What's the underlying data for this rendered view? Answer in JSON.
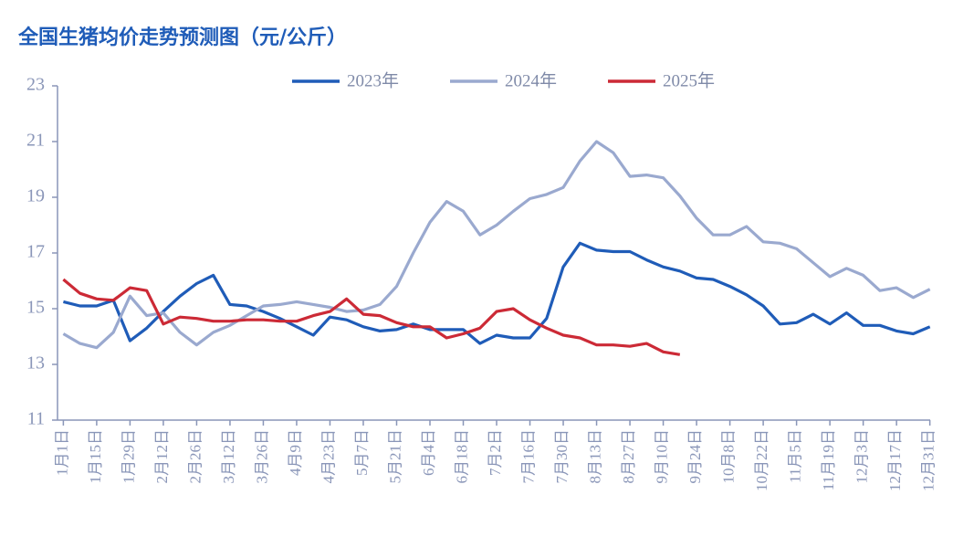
{
  "chart_data": {
    "type": "line",
    "title": "全国生猪均价走势预测图（元/公斤）",
    "categories": [
      "1月1日",
      null,
      "1月15日",
      null,
      "1月29日",
      null,
      "2月12日",
      null,
      "2月26日",
      null,
      "3月12日",
      null,
      "3月26日",
      null,
      "4月9日",
      null,
      "4月23日",
      null,
      "5月7日",
      null,
      "5月21日",
      null,
      "6月4日",
      null,
      "6月18日",
      null,
      "7月2日",
      null,
      "7月16日",
      null,
      "7月30日",
      null,
      "8月13日",
      null,
      "8月27日",
      null,
      "9月10日",
      null,
      "9月24日",
      null,
      "10月8日",
      null,
      "10月22日",
      null,
      "11月5日",
      null,
      "11月19日",
      null,
      "12月3日",
      null,
      "12月17日",
      null,
      "12月31日"
    ],
    "series": [
      {
        "name": "2023年",
        "color": "#1f5cb8",
        "values": [
          15.25,
          15.1,
          15.1,
          15.3,
          13.85,
          14.3,
          14.9,
          15.45,
          15.9,
          16.2,
          15.15,
          15.1,
          14.9,
          14.65,
          14.35,
          14.05,
          14.7,
          14.6,
          14.35,
          14.2,
          14.25,
          14.45,
          14.25,
          14.25,
          14.25,
          13.75,
          14.05,
          13.95,
          13.95,
          14.65,
          16.5,
          17.35,
          17.1,
          17.05,
          17.05,
          16.75,
          16.5,
          16.35,
          16.1,
          16.05,
          15.8,
          15.5,
          15.1,
          14.45,
          14.5,
          14.8,
          14.45,
          14.85,
          14.4,
          14.4,
          14.2,
          14.1,
          14.35
        ]
      },
      {
        "name": "2024年",
        "color": "#9aa9cf",
        "values": [
          14.1,
          13.75,
          13.6,
          14.15,
          15.45,
          14.75,
          14.85,
          14.15,
          13.7,
          14.15,
          14.4,
          14.75,
          15.1,
          15.15,
          15.25,
          15.15,
          15.05,
          14.9,
          14.95,
          15.15,
          15.8,
          17.0,
          18.1,
          18.85,
          18.5,
          17.65,
          18.0,
          18.5,
          18.95,
          19.1,
          19.35,
          20.3,
          21.0,
          20.6,
          19.75,
          19.8,
          19.7,
          19.05,
          18.25,
          17.65,
          17.65,
          17.95,
          17.4,
          17.35,
          17.15,
          16.65,
          16.15,
          16.45,
          16.2,
          15.65,
          15.75,
          15.4,
          15.7
        ]
      },
      {
        "name": "2025年",
        "color": "#cc2a36",
        "values": [
          16.05,
          15.55,
          15.35,
          15.3,
          15.75,
          15.65,
          14.45,
          14.7,
          14.65,
          14.55,
          14.55,
          14.6,
          14.6,
          14.55,
          14.55,
          14.75,
          14.9,
          15.35,
          14.8,
          14.75,
          14.5,
          14.35,
          14.35,
          13.95,
          14.1,
          14.3,
          14.9,
          15.0,
          14.6,
          14.3,
          14.05,
          13.95,
          13.7,
          13.7,
          13.65,
          13.75,
          13.45,
          13.35,
          null,
          null,
          null,
          null,
          null,
          null,
          null,
          null,
          null,
          null,
          null,
          null,
          null,
          null,
          null
        ]
      }
    ],
    "ylim": [
      11,
      23
    ],
    "yticks": [
      11,
      13,
      15,
      17,
      19,
      21,
      23
    ]
  }
}
